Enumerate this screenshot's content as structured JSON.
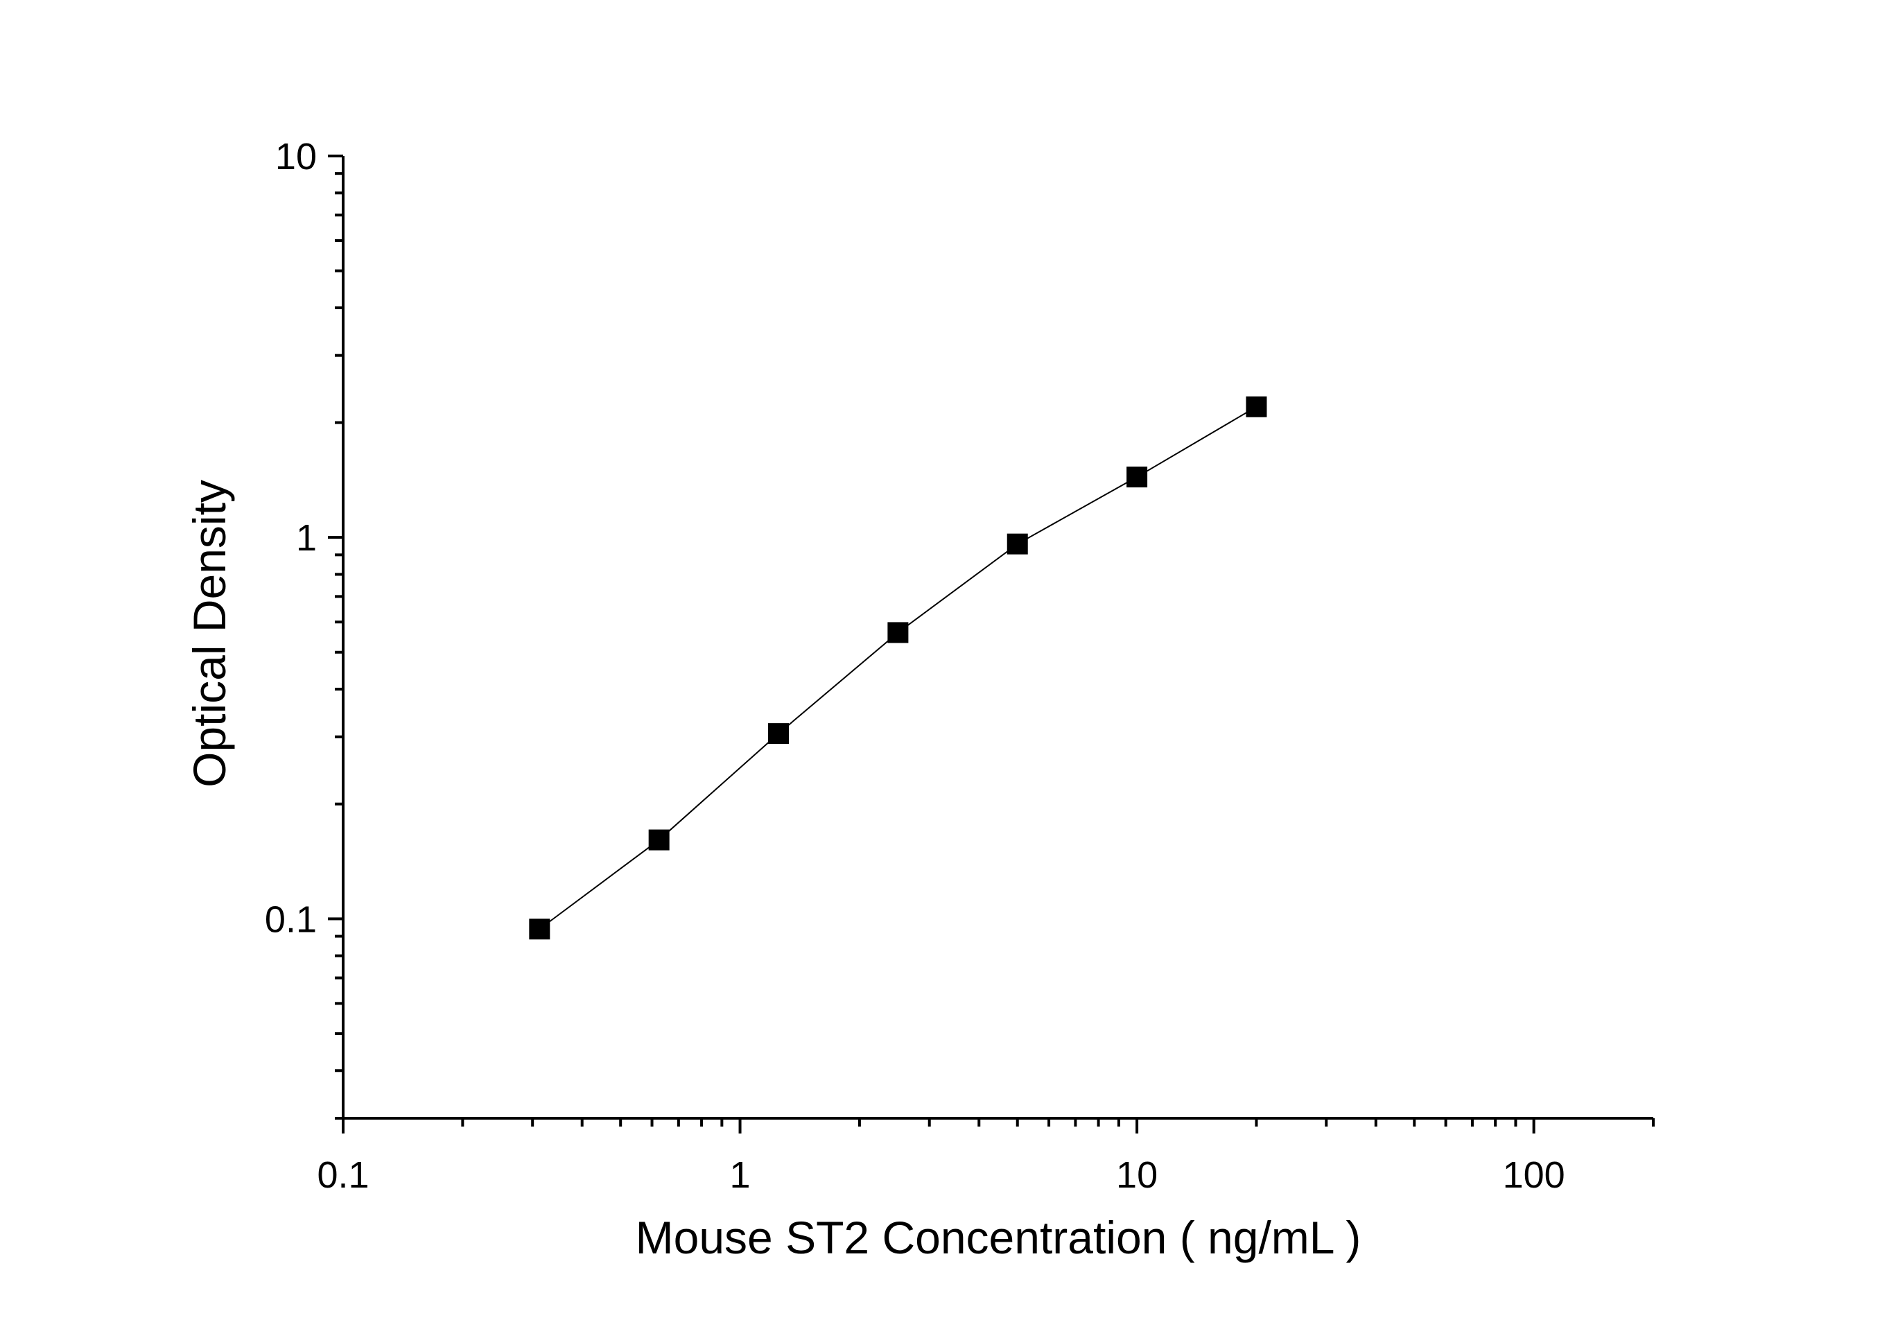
{
  "chart_data": {
    "type": "scatter",
    "title": "",
    "xlabel": "Mouse ST2 Concentration ( ng/mL )",
    "ylabel": "Optical Density",
    "x_scale": "log",
    "y_scale": "log",
    "xlim": [
      0.1,
      200
    ],
    "ylim": [
      0.03,
      10
    ],
    "x_ticks": [
      {
        "value": 0.1,
        "label": "0.1"
      },
      {
        "value": 1,
        "label": "1"
      },
      {
        "value": 10,
        "label": "10"
      },
      {
        "value": 100,
        "label": "100"
      }
    ],
    "y_ticks": [
      {
        "value": 0.1,
        "label": "0.1"
      },
      {
        "value": 1,
        "label": "1"
      },
      {
        "value": 10,
        "label": "10"
      }
    ],
    "grid": false,
    "legend": "none",
    "marker": "square",
    "connected": true,
    "series": [
      {
        "x": [
          0.3125,
          0.625,
          1.25,
          2.5,
          5,
          10,
          20
        ],
        "y": [
          0.094,
          0.161,
          0.306,
          0.563,
          0.961,
          1.44,
          2.2
        ]
      }
    ],
    "colors": {
      "marker": "#000000",
      "line": "#000000",
      "axes": "#000000"
    }
  }
}
